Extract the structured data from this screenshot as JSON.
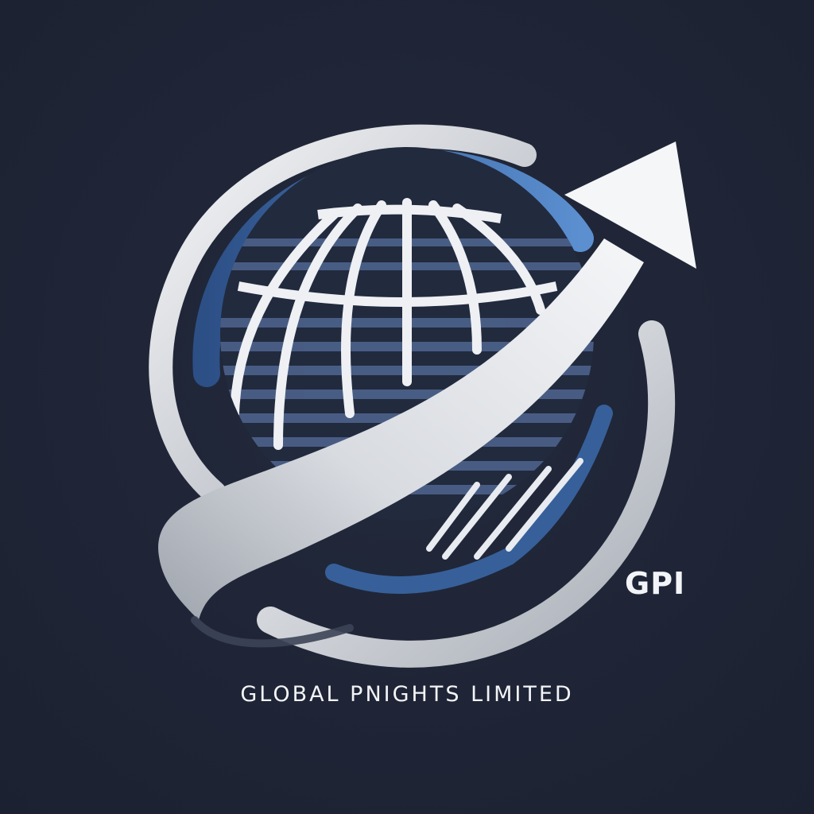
{
  "logo": {
    "abbreviation": "GPI",
    "company_name": "GLOBAL PNIGHTS LIMITED",
    "icons": [
      "globe-icon",
      "swoosh-ring",
      "arrow-up-right-icon"
    ],
    "colors": {
      "background": "#1f2536",
      "accent_blue": "#3d6fb3",
      "swoosh_light": "#f3f4f6",
      "swoosh_shadow": "#9ea4ad",
      "text": "#f2f4f7"
    }
  }
}
